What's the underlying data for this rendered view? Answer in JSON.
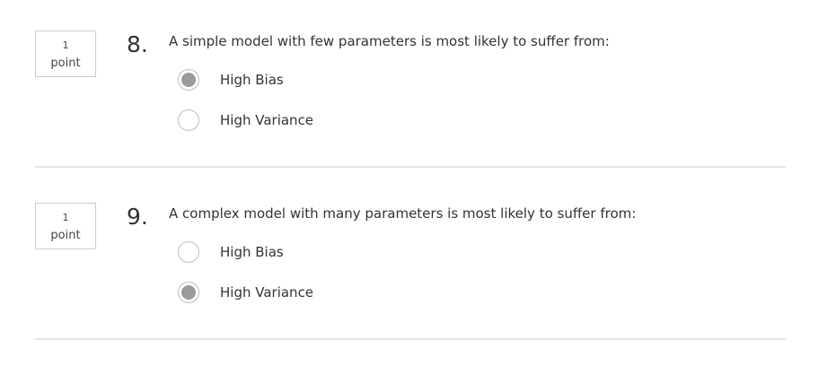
{
  "questions": [
    {
      "points_value": "1",
      "points_unit": "point",
      "number": "8.",
      "text": "A simple model with few parameters is most likely to suffer from:",
      "options": [
        {
          "label": "High Bias",
          "selected": true
        },
        {
          "label": "High Variance",
          "selected": false
        }
      ]
    },
    {
      "points_value": "1",
      "points_unit": "point",
      "number": "9.",
      "text": "A complex model with many parameters is most likely to suffer from:",
      "options": [
        {
          "label": "High Bias",
          "selected": false
        },
        {
          "label": "High Variance",
          "selected": true
        }
      ]
    }
  ],
  "colors": {
    "radio_selected": "#9a9a9a",
    "divider": "#e4e4e4",
    "text": "#333333"
  }
}
